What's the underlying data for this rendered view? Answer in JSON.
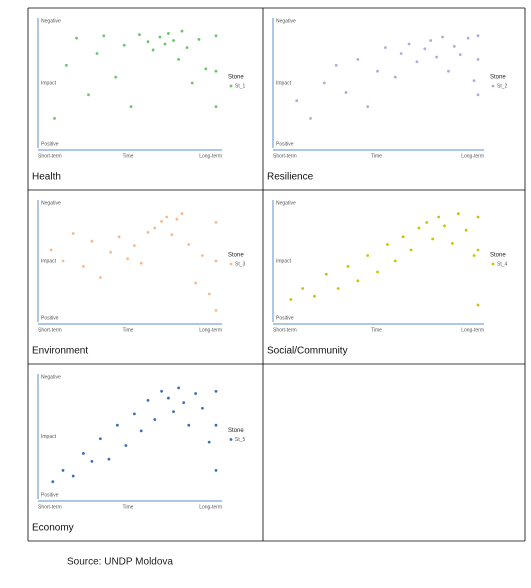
{
  "chart_data": [
    {
      "type": "scatter",
      "title": "Health",
      "y_label_top": "Negative",
      "ylabel": "Impact",
      "y_label_bottom": "Positive",
      "x_label_left": "Short-term",
      "xlabel": "Time",
      "x_label_right": "Long-term",
      "legend_title": "Stone",
      "xlim": [
        0,
        10
      ],
      "ylim": [
        0,
        10
      ],
      "series": [
        {
          "name": "St_1",
          "color": "#6cc46a",
          "x": [
            0.5,
            1.2,
            1.8,
            2.5,
            3.0,
            3.4,
            4.1,
            4.6,
            5.0,
            5.5,
            6.0,
            6.3,
            6.7,
            7.0,
            7.2,
            7.5,
            7.8,
            8.0,
            8.3,
            8.6,
            9.0,
            9.4,
            10,
            10,
            10
          ],
          "values": [
            2.0,
            6.5,
            8.8,
            4.0,
            7.5,
            9.0,
            5.5,
            8.2,
            3.0,
            9.1,
            8.5,
            7.8,
            8.9,
            8.3,
            9.2,
            8.6,
            7.0,
            9.4,
            8.0,
            5.0,
            8.7,
            6.2,
            9.0,
            6.0,
            3.0
          ]
        }
      ]
    },
    {
      "type": "scatter",
      "title": "Resilience",
      "y_label_top": "Negative",
      "ylabel": "Impact",
      "y_label_bottom": "Positive",
      "x_label_left": "Short-term",
      "xlabel": "Time",
      "x_label_right": "Long-term",
      "legend_title": "Stone",
      "xlim": [
        0,
        10
      ],
      "ylim": [
        0,
        10
      ],
      "series": [
        {
          "name": "St_2",
          "color": "#b9a6dc",
          "x": [
            0.8,
            1.5,
            2.2,
            2.8,
            3.3,
            3.9,
            4.4,
            4.9,
            5.3,
            5.8,
            6.1,
            6.5,
            6.9,
            7.3,
            7.6,
            7.9,
            8.2,
            8.5,
            8.8,
            9.1,
            9.5,
            9.8,
            10,
            10,
            10
          ],
          "values": [
            3.5,
            2.0,
            5.0,
            6.5,
            4.2,
            7.0,
            3.0,
            6.0,
            8.0,
            5.5,
            7.5,
            8.3,
            6.8,
            7.9,
            8.6,
            7.2,
            8.9,
            6.0,
            8.1,
            7.4,
            8.8,
            5.2,
            9.0,
            7.0,
            4.0
          ]
        }
      ]
    },
    {
      "type": "scatter",
      "title": "Environment",
      "y_label_top": "Negative",
      "ylabel": "Impact",
      "y_label_bottom": "Positive",
      "x_label_left": "Short-term",
      "xlabel": "Time",
      "x_label_right": "Long-term",
      "legend_title": "Stone",
      "xlim": [
        0,
        10
      ],
      "ylim": [
        0,
        10
      ],
      "series": [
        {
          "name": "St_3",
          "color": "#f7b98a",
          "x": [
            0.3,
            1.0,
            1.6,
            2.2,
            2.7,
            3.2,
            3.8,
            4.3,
            4.8,
            5.2,
            5.6,
            6.0,
            6.4,
            6.8,
            7.1,
            7.4,
            7.7,
            8.0,
            8.4,
            8.8,
            9.2,
            9.6,
            10,
            10,
            10
          ],
          "values": [
            6.0,
            5.0,
            7.5,
            4.5,
            6.8,
            3.5,
            5.8,
            7.2,
            5.2,
            6.4,
            4.8,
            7.6,
            8.0,
            8.6,
            9.0,
            7.4,
            8.8,
            9.3,
            6.5,
            3.0,
            5.5,
            2.0,
            8.5,
            5.0,
            0.5
          ]
        }
      ]
    },
    {
      "type": "scatter",
      "title": "Social/Community",
      "y_label_top": "Negative",
      "ylabel": "Impact",
      "y_label_bottom": "Positive",
      "x_label_left": "Short-term",
      "xlabel": "Time",
      "x_label_right": "Long-term",
      "legend_title": "Stone",
      "xlim": [
        0,
        10
      ],
      "ylim": [
        0,
        10
      ],
      "series": [
        {
          "name": "St_4",
          "color": "#c8c400",
          "x": [
            0.5,
            1.1,
            1.7,
            2.3,
            2.9,
            3.4,
            3.9,
            4.4,
            4.9,
            5.4,
            5.8,
            6.2,
            6.6,
            7.0,
            7.4,
            7.7,
            8.0,
            8.3,
            8.7,
            9.0,
            9.4,
            9.8,
            10,
            10,
            10
          ],
          "values": [
            1.5,
            2.5,
            1.8,
            3.8,
            2.5,
            4.5,
            3.2,
            5.5,
            4.0,
            6.5,
            5.0,
            7.2,
            6.0,
            8.0,
            8.5,
            7.0,
            9.0,
            8.2,
            6.6,
            9.3,
            7.8,
            5.5,
            9.0,
            6.0,
            1.0
          ]
        }
      ]
    },
    {
      "type": "scatter",
      "title": "Economy",
      "y_label_top": "Negative",
      "ylabel": "Impact",
      "y_label_bottom": "Positive",
      "x_label_left": "Short-term",
      "xlabel": "Time",
      "x_label_right": "Long-term",
      "legend_title": "Stone",
      "xlim": [
        0,
        10
      ],
      "ylim": [
        0,
        10
      ],
      "series": [
        {
          "name": "St_5",
          "color": "#3a6fb5",
          "x": [
            0.4,
            1.0,
            1.6,
            2.2,
            2.7,
            3.2,
            3.7,
            4.2,
            4.7,
            5.2,
            5.6,
            6.0,
            6.4,
            6.8,
            7.2,
            7.5,
            7.8,
            8.1,
            8.4,
            8.8,
            9.2,
            9.6,
            10,
            10,
            10
          ],
          "values": [
            1.0,
            2.0,
            1.5,
            3.5,
            2.8,
            4.8,
            3.0,
            6.0,
            4.2,
            7.0,
            5.5,
            8.2,
            6.5,
            9.0,
            8.4,
            7.2,
            9.3,
            8.0,
            6.0,
            8.8,
            7.5,
            4.5,
            9.0,
            6.0,
            2.0
          ]
        }
      ]
    }
  ],
  "source": "Source: UNDP Moldova"
}
